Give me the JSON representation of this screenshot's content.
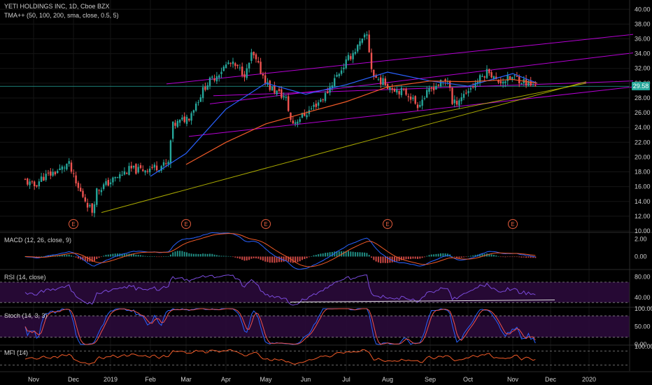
{
  "header": {
    "symbol": "YETI HOLDINGS INC, 1D, Cboe BZX",
    "indicator": "TMA++ (50, 100, 200, sma, close, 0.5, 5)"
  },
  "panes": {
    "macd_label": "MACD (12, 26, close, 9)",
    "rsi_label": "RSI (14, close)",
    "stoch_label": "Stoch (14, 3, 3)",
    "mfi_label": "MFI (14)"
  },
  "price_tag": "29.58",
  "earnings_marker": "E",
  "colors": {
    "background": "#000000",
    "up": "#26a69a",
    "down": "#ef5350",
    "sma50": "#2962ff",
    "sma100": "#f05a28",
    "channel": "#d500f9",
    "trend": "#c6c600",
    "osc_bg": "#2a0a3a",
    "rsi_line": "#7b4bdc",
    "stoch_k": "#2962ff",
    "stoch_d": "#ef5350",
    "mfi_line": "#f05a28"
  },
  "chart_data": [
    {
      "type": "candlestick",
      "title": "YETI HOLDINGS INC, 1D, Cboe BZX",
      "x_ticks": [
        "Nov",
        "Dec",
        "2019",
        "Feb",
        "Mar",
        "Apr",
        "May",
        "Jun",
        "Jul",
        "Aug",
        "Sep",
        "Oct",
        "Nov",
        "Dec",
        "2020"
      ],
      "y_ticks": [
        "40.00",
        "38.00",
        "36.00",
        "34.00",
        "32.00",
        "30.00",
        "28.00",
        "26.00",
        "24.00",
        "22.00",
        "20.00",
        "18.00",
        "16.00",
        "14.00",
        "12.00",
        "10.00"
      ],
      "ylim": [
        10,
        40.5
      ],
      "last_close": 29.58,
      "earnings_months": [
        "Dec",
        "Mar",
        "May",
        "Aug",
        "Nov"
      ],
      "close_path": [
        {
          "x": "Nov",
          "y": 16.8
        },
        {
          "x": "Nov",
          "y": 16.0
        },
        {
          "x": "Nov",
          "y": 17.2
        },
        {
          "x": "Dec",
          "y": 18.3
        },
        {
          "x": "Dec",
          "y": 19.2
        },
        {
          "x": "Dec",
          "y": 16.2
        },
        {
          "x": "Dec",
          "y": 14.5
        },
        {
          "x": "Dec",
          "y": 12.6
        },
        {
          "x": "2019",
          "y": 15.5
        },
        {
          "x": "2019",
          "y": 18.4
        },
        {
          "x": "Feb",
          "y": 18.2
        },
        {
          "x": "Feb",
          "y": 19.0
        },
        {
          "x": "Mar",
          "y": 24.2
        },
        {
          "x": "Mar",
          "y": 25.5
        },
        {
          "x": "Mar",
          "y": 29.8
        },
        {
          "x": "Apr",
          "y": 30.5
        },
        {
          "x": "Apr",
          "y": 32.8
        },
        {
          "x": "Apr",
          "y": 31.2
        },
        {
          "x": "May",
          "y": 34.0
        },
        {
          "x": "May",
          "y": 29.5
        },
        {
          "x": "May",
          "y": 28.0
        },
        {
          "x": "Jun",
          "y": 24.5
        },
        {
          "x": "Jun",
          "y": 26.2
        },
        {
          "x": "Jun",
          "y": 28.5
        },
        {
          "x": "Jul",
          "y": 30.0
        },
        {
          "x": "Jul",
          "y": 33.5
        },
        {
          "x": "Jul",
          "y": 36.5
        },
        {
          "x": "Aug",
          "y": 31.0
        },
        {
          "x": "Aug",
          "y": 29.5
        },
        {
          "x": "Aug",
          "y": 28.5
        },
        {
          "x": "Sep",
          "y": 27.0
        },
        {
          "x": "Sep",
          "y": 29.5
        },
        {
          "x": "Sep",
          "y": 30.5
        },
        {
          "x": "Oct",
          "y": 27.0
        },
        {
          "x": "Oct",
          "y": 29.5
        },
        {
          "x": "Oct",
          "y": 32.0
        },
        {
          "x": "Nov",
          "y": 33.8
        },
        {
          "x": "Nov",
          "y": 30.2
        },
        {
          "x": "Nov",
          "y": 30.8
        },
        {
          "x": "Nov",
          "y": 29.58
        }
      ],
      "series": [
        {
          "name": "SMA 50",
          "points": [
            {
              "x": "Feb",
              "y": 17.4
            },
            {
              "x": "Mar",
              "y": 20.5
            },
            {
              "x": "Apr",
              "y": 26.5
            },
            {
              "x": "May",
              "y": 30.0
            },
            {
              "x": "Jun",
              "y": 28.5
            },
            {
              "x": "Jul",
              "y": 29.8
            },
            {
              "x": "Aug",
              "y": 31.5
            },
            {
              "x": "Sep",
              "y": 30.3
            },
            {
              "x": "Oct",
              "y": 29.6
            },
            {
              "x": "Nov",
              "y": 31.3
            },
            {
              "x": "Nov",
              "y": 30.0
            }
          ]
        },
        {
          "name": "SMA 100",
          "points": [
            {
              "x": "Mar",
              "y": 19.0
            },
            {
              "x": "Apr",
              "y": 22.0
            },
            {
              "x": "May",
              "y": 24.5
            },
            {
              "x": "Jun",
              "y": 26.0
            },
            {
              "x": "Jul",
              "y": 27.5
            },
            {
              "x": "Aug",
              "y": 29.5
            },
            {
              "x": "Sep",
              "y": 30.3
            },
            {
              "x": "Oct",
              "y": 30.2
            },
            {
              "x": "Nov",
              "y": 30.5
            },
            {
              "x": "Nov",
              "y": 30.0
            }
          ]
        }
      ]
    },
    {
      "type": "line",
      "title": "MACD (12, 26, close, 9)",
      "y_ticks": [
        "2.00",
        "0.00"
      ],
      "ylim": [
        -1.4,
        2.6
      ]
    },
    {
      "type": "line",
      "title": "RSI (14, close)",
      "y_ticks": [
        "80.00",
        "40.00"
      ],
      "ylim": [
        22,
        92
      ],
      "bands": [
        70,
        30
      ]
    },
    {
      "type": "line",
      "title": "Stoch (14, 3, 3)",
      "y_ticks": [
        "100.00",
        "50.00",
        "0.00"
      ],
      "ylim": [
        0,
        100
      ],
      "bands": [
        80,
        20
      ]
    },
    {
      "type": "line",
      "title": "MFI (14)",
      "y_ticks": [
        "100.00"
      ],
      "ylim": [
        0,
        100
      ],
      "bands": [
        80,
        20
      ]
    }
  ]
}
